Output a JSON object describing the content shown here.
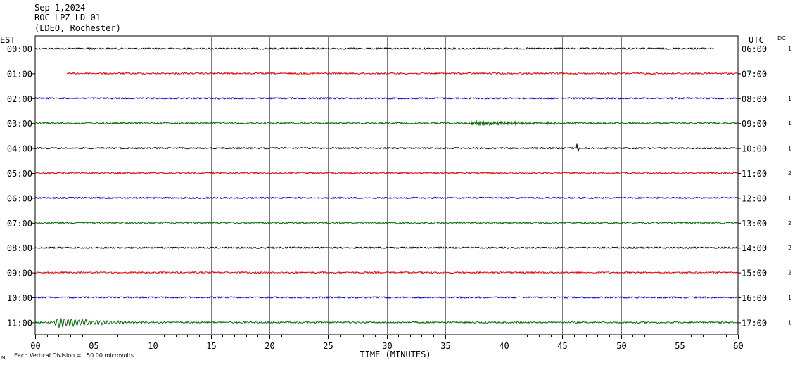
{
  "header": {
    "date": "Sep 1,2024",
    "station": "ROC LPZ LD 01",
    "network": "(LDEO, Rochester)"
  },
  "footer": {
    "mark": "ᴍ",
    "scale_note": "Each Vertical Division =   50.00 microvolts"
  },
  "chart_data": {
    "type": "line",
    "title": "",
    "xlabel": "TIME (MINUTES)",
    "ylabel": "",
    "left_axis_label": "EST",
    "right_axis_label": "UTC",
    "dc_label": "DC",
    "xlim": [
      0,
      60
    ],
    "x_ticks": [
      0,
      5,
      10,
      15,
      20,
      25,
      30,
      35,
      40,
      45,
      50,
      55,
      60
    ],
    "x_tick_labels": [
      "00",
      "05",
      "10",
      "15",
      "20",
      "25",
      "30",
      "35",
      "40",
      "45",
      "50",
      "55",
      "60"
    ],
    "grid": true,
    "colors": [
      "#000000",
      "#dd0000",
      "#0000cc",
      "#006600"
    ],
    "rows": [
      {
        "est": "00:00",
        "utc": "06:00",
        "dc": "1",
        "color": "#000000",
        "start_min": 0.0,
        "end_min": 58.0,
        "events": [
          {
            "t": 4.5,
            "amp": 0.25,
            "dur": 1.5,
            "freq": 1.0
          }
        ]
      },
      {
        "est": "01:00",
        "utc": "07:00",
        "dc": "",
        "color": "#dd0000",
        "start_min": 2.7,
        "end_min": 60.0,
        "events": []
      },
      {
        "est": "02:00",
        "utc": "08:00",
        "dc": "1",
        "color": "#0000cc",
        "start_min": 0.0,
        "end_min": 60.0,
        "events": []
      },
      {
        "est": "03:00",
        "utc": "09:00",
        "dc": "1",
        "color": "#006600",
        "start_min": 0.0,
        "end_min": 60.0,
        "events": [
          {
            "t": 36.8,
            "amp": 0.5,
            "dur": 15.0,
            "freq": 0.7
          }
        ]
      },
      {
        "est": "04:00",
        "utc": "10:00",
        "dc": "1",
        "color": "#000000",
        "start_min": 0.0,
        "end_min": 60.0,
        "events": [
          {
            "t": 46.2,
            "amp": 1.5,
            "dur": 0.4,
            "freq": 2.0
          }
        ]
      },
      {
        "est": "05:00",
        "utc": "11:00",
        "dc": "2",
        "color": "#dd0000",
        "start_min": 0.0,
        "end_min": 60.0,
        "events": []
      },
      {
        "est": "06:00",
        "utc": "12:00",
        "dc": "1",
        "color": "#0000cc",
        "start_min": 0.0,
        "end_min": 60.0,
        "events": []
      },
      {
        "est": "07:00",
        "utc": "13:00",
        "dc": "2",
        "color": "#006600",
        "start_min": 0.0,
        "end_min": 60.0,
        "events": []
      },
      {
        "est": "08:00",
        "utc": "14:00",
        "dc": "2",
        "color": "#000000",
        "start_min": 0.0,
        "end_min": 60.0,
        "events": []
      },
      {
        "est": "09:00",
        "utc": "15:00",
        "dc": "2",
        "color": "#dd0000",
        "start_min": 0.0,
        "end_min": 60.0,
        "events": []
      },
      {
        "est": "10:00",
        "utc": "16:00",
        "dc": "1",
        "color": "#0000cc",
        "start_min": 0.0,
        "end_min": 60.0,
        "events": []
      },
      {
        "est": "11:00",
        "utc": "17:00",
        "dc": "1",
        "color": "#006600",
        "start_min": 0.0,
        "end_min": 60.0,
        "events": [
          {
            "t": 1.5,
            "amp": 1.0,
            "dur": 10.0,
            "freq": 1.4
          }
        ]
      }
    ]
  }
}
